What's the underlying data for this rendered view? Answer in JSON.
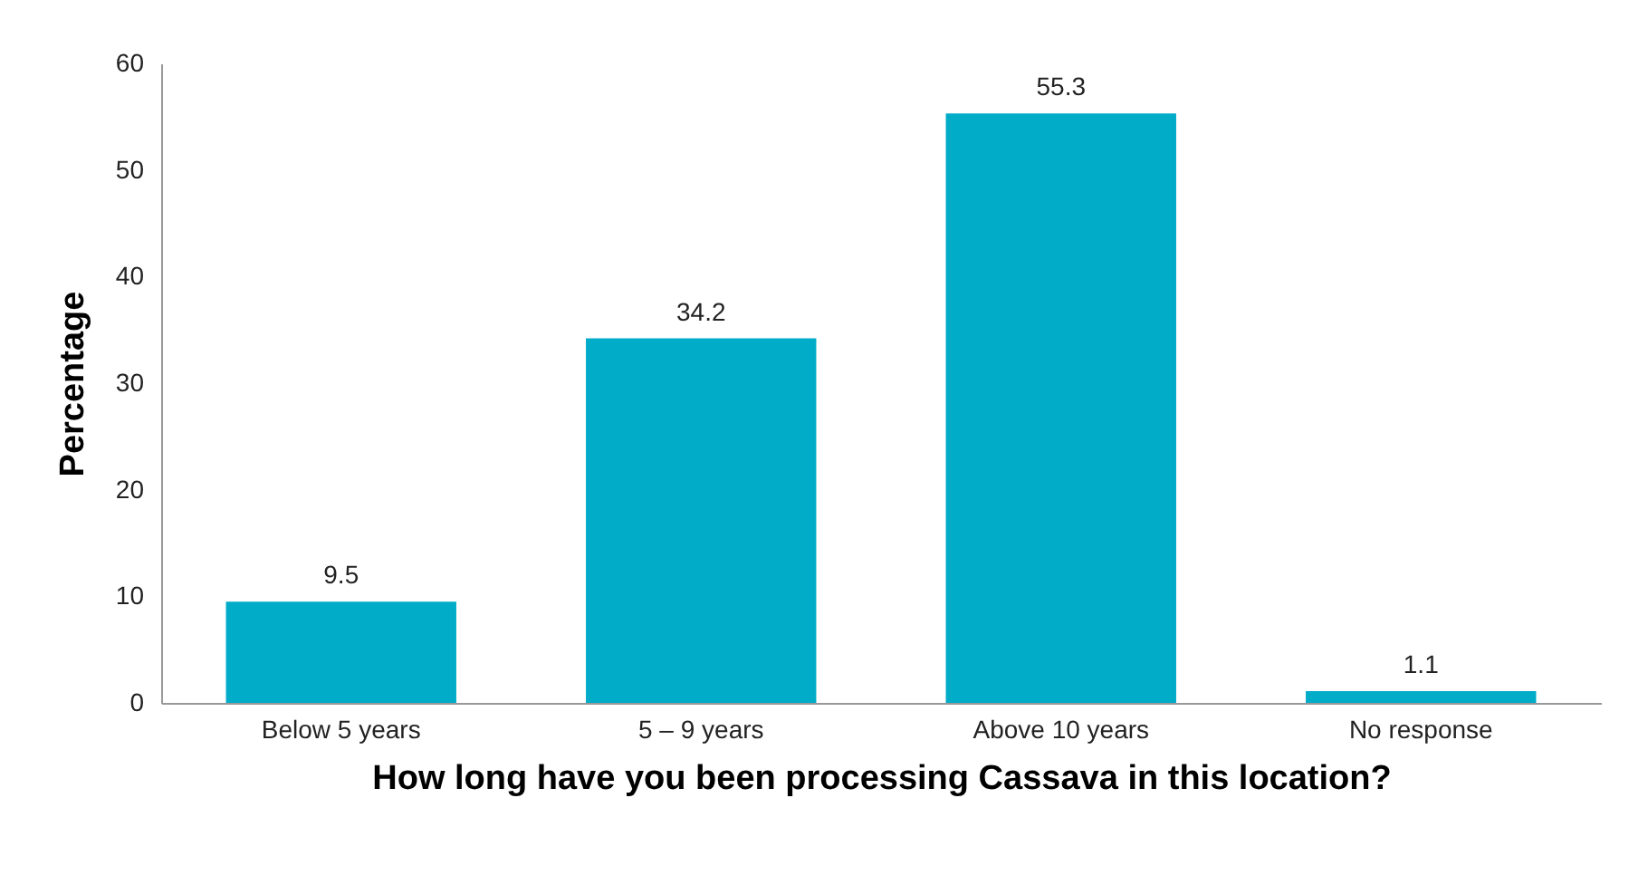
{
  "chart_data": {
    "type": "bar",
    "xlabel": "How long have you been processing Cassava in this location?",
    "ylabel": "Percentage",
    "categories": [
      "Below 5 years",
      "5 – 9 years",
      "Above 10 years",
      "No response"
    ],
    "values": [
      9.5,
      34.2,
      55.3,
      1.1
    ],
    "color": "#00acc8",
    "ylim": [
      0,
      60
    ],
    "yticks": [
      0,
      10,
      20,
      30,
      40,
      50,
      60
    ],
    "grid": false,
    "data_labels": true
  }
}
